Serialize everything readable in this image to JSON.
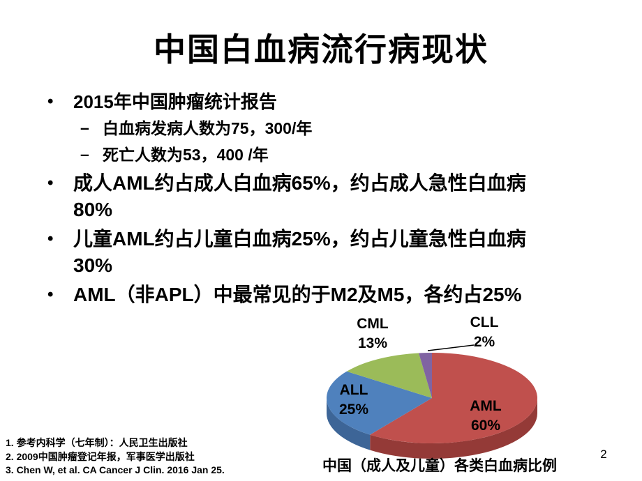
{
  "slide": {
    "title": "中国白血病流行病现状",
    "page_number": "2",
    "bullet_char": "•",
    "dash_char": "–",
    "bullets": [
      {
        "level": 1,
        "text": "2015年中国肿瘤统计报告"
      },
      {
        "level": 2,
        "text": "白血病发病人数为75，300/年"
      },
      {
        "level": 2,
        "text": "死亡人数为53，400 /年"
      },
      {
        "level": 1,
        "text": "成人AML约占成人白血病65%，约占成人急性白血病\n80%"
      },
      {
        "level": 1,
        "text": "儿童AML约占儿童白血病25%，约占儿童急性白血病\n30%"
      },
      {
        "level": 1,
        "text": "AML（非APL）中最常见的于M2及M5，各约占25%"
      }
    ],
    "references": [
      "1.  参考内科学（七年制）：人民卫生出版社",
      "2.  2009中国肿瘤登记年报，军事医学出版社",
      "3.  Chen W, et al. CA Cancer J Clin. 2016 Jan 25."
    ]
  },
  "chart_data": {
    "type": "pie",
    "style": "3d",
    "title": "中国（成人及儿童）各类白血病比例",
    "categories": [
      "AML",
      "ALL",
      "CML",
      "CLL"
    ],
    "values": [
      60,
      25,
      13,
      2
    ],
    "unit": "percent",
    "direction": "clockwise",
    "start_angle": "top",
    "legend": "none",
    "labels": [
      {
        "name": "AML",
        "percent": "60%",
        "placement": "inside"
      },
      {
        "name": "ALL",
        "percent": "25%",
        "placement": "inside"
      },
      {
        "name": "CML",
        "percent": "13%",
        "placement": "outside"
      },
      {
        "name": "CLL",
        "percent": "2%",
        "placement": "outside-leader-line"
      }
    ],
    "colors": [
      "#c0504d",
      "#4f81bd",
      "#9bbb59",
      "#8064a2"
    ],
    "side_colors": [
      "#943a37",
      "#3d6597",
      "#6f8a3d",
      "#5c4976"
    ]
  }
}
